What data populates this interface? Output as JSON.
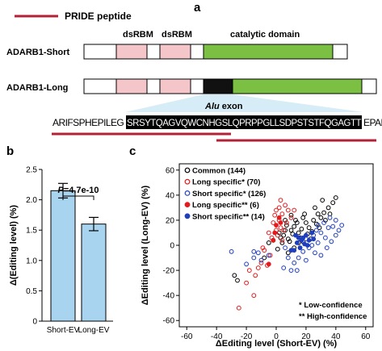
{
  "panel_a": {
    "label": "a",
    "legend_label": "PRIDE peptide",
    "colors": {
      "peptide": "#b22234",
      "dsrbm": "#f5c6c9",
      "catalytic": "#7bc043",
      "alu": "#111111",
      "exon_shade": "#d6ecf7"
    },
    "domain_labels": {
      "dsrbm1": "dsRBM",
      "dsrbm2": "dsRBM",
      "catalytic": "catalytic domain"
    },
    "isoforms": {
      "short": "ADARB1-Short",
      "long": "ADARB1-Long"
    },
    "alu_label": "Alu",
    "exon_label": " exon",
    "sequence": {
      "left": "ARIFSPHEPILEG",
      "exon": "SRSYTQAGVQWCNHGSLQPRPPGLLSDPSTSTFQGAGTT",
      "right": "EPADRHP"
    }
  },
  "panel_b": {
    "label": "b",
    "chart_data": {
      "type": "bar",
      "categories": [
        "Short-EV",
        "Long-EV"
      ],
      "values": [
        2.15,
        1.6
      ],
      "errors": [
        0.12,
        0.11
      ],
      "ylabel": "Δ(Editing level) (%)",
      "ylim": [
        0,
        2.5
      ],
      "yticks": [
        "0",
        "0.5",
        "1.0",
        "1.5",
        "2.0",
        "2.5"
      ],
      "annotation_p": "P",
      "annotation_value": "=4.7e-10",
      "bar_color": "#a9d4f0"
    }
  },
  "panel_c": {
    "label": "c",
    "chart_data": {
      "type": "scatter",
      "xlabel": "ΔEditing level (Short-EV) (%)",
      "ylabel": "ΔEditing level (Long-EV) (%)",
      "xlim": [
        -65,
        65
      ],
      "ylim": [
        -65,
        65
      ],
      "xticks": [
        "-60",
        "-40",
        "-20",
        "0",
        "20",
        "40",
        "60"
      ],
      "yticks": [
        "-60",
        "-40",
        "-20",
        "0",
        "20",
        "40",
        "60"
      ],
      "series": [
        {
          "name": "Common (144)",
          "color": "#000000",
          "filled": false,
          "points": [
            [
              5,
              8
            ],
            [
              10,
              12
            ],
            [
              15,
              10
            ],
            [
              8,
              5
            ],
            [
              12,
              15
            ],
            [
              20,
              18
            ],
            [
              18,
              22
            ],
            [
              25,
              20
            ],
            [
              22,
              14
            ],
            [
              14,
              18
            ],
            [
              6,
              12
            ],
            [
              9,
              3
            ],
            [
              16,
              6
            ],
            [
              28,
              25
            ],
            [
              30,
              22
            ],
            [
              35,
              30
            ],
            [
              40,
              38
            ],
            [
              38,
              34
            ],
            [
              32,
              26
            ],
            [
              26,
              30
            ],
            [
              11,
              9
            ],
            [
              13,
              20
            ],
            [
              17,
              13
            ],
            [
              21,
              9
            ],
            [
              4,
              2
            ],
            [
              7,
              16
            ],
            [
              19,
              25
            ],
            [
              24,
              11
            ],
            [
              27,
              17
            ],
            [
              3,
              6
            ],
            [
              -2,
              4
            ],
            [
              -5,
              2
            ],
            [
              1,
              -3
            ],
            [
              2,
              10
            ],
            [
              15,
              2
            ],
            [
              23,
              5
            ],
            [
              29,
              14
            ],
            [
              33,
              20
            ],
            [
              12,
              -2
            ],
            [
              8,
              -6
            ],
            [
              -8,
              -10
            ],
            [
              -28,
              -24
            ],
            [
              -26,
              -28
            ],
            [
              6,
              20
            ],
            [
              18,
              3
            ],
            [
              10,
              24
            ],
            [
              36,
              25
            ],
            [
              31,
              36
            ]
          ]
        },
        {
          "name": "Long specific* (70)",
          "color": "#e41a1c",
          "filled": false,
          "points": [
            [
              2,
              20
            ],
            [
              0,
              28
            ],
            [
              4,
              25
            ],
            [
              6,
              32
            ],
            [
              3,
              14
            ],
            [
              -2,
              18
            ],
            [
              1,
              8
            ],
            [
              -5,
              10
            ],
            [
              -8,
              -4
            ],
            [
              -10,
              -14
            ],
            [
              -12,
              -18
            ],
            [
              -20,
              -30
            ],
            [
              -25,
              -50
            ],
            [
              -15,
              -40
            ],
            [
              -6,
              -16
            ],
            [
              -3,
              6
            ],
            [
              5,
              12
            ],
            [
              8,
              28
            ],
            [
              10,
              22
            ],
            [
              2,
              30
            ],
            [
              -1,
              24
            ],
            [
              7,
              18
            ],
            [
              4,
              4
            ],
            [
              -14,
              -24
            ],
            [
              -9,
              -2
            ],
            [
              12,
              28
            ],
            [
              3,
              36
            ],
            [
              0,
              12
            ],
            [
              -4,
              -8
            ],
            [
              -18,
              -20
            ]
          ]
        },
        {
          "name": "Short specific* (126)",
          "color": "#1f3fbf",
          "filled": false,
          "points": [
            [
              20,
              5
            ],
            [
              25,
              8
            ],
            [
              28,
              2
            ],
            [
              30,
              10
            ],
            [
              35,
              14
            ],
            [
              33,
              6
            ],
            [
              22,
              -2
            ],
            [
              18,
              -5
            ],
            [
              15,
              -10
            ],
            [
              12,
              -14
            ],
            [
              10,
              -20
            ],
            [
              5,
              -18
            ],
            [
              38,
              15
            ],
            [
              40,
              20
            ],
            [
              42,
              12
            ],
            [
              26,
              -6
            ],
            [
              24,
              0
            ],
            [
              30,
              -8
            ],
            [
              16,
              -2
            ],
            [
              8,
              -10
            ],
            [
              -5,
              -8
            ],
            [
              -10,
              -12
            ],
            [
              -15,
              -10
            ],
            [
              -20,
              -15
            ],
            [
              -30,
              -5
            ],
            [
              -15,
              -5
            ],
            [
              36,
              22
            ],
            [
              44,
              16
            ],
            [
              32,
              18
            ],
            [
              27,
              12
            ],
            [
              34,
              -2
            ],
            [
              20,
              -12
            ],
            [
              14,
              -20
            ],
            [
              6,
              -2
            ],
            [
              -12,
              -6
            ],
            [
              28,
              16
            ],
            [
              40,
              8
            ],
            [
              37,
              3
            ]
          ]
        },
        {
          "name": "Long specific** (6)",
          "color": "#e41a1c",
          "filled": true,
          "points": [
            [
              0,
              16
            ],
            [
              -1,
              10
            ],
            [
              2,
              22
            ],
            [
              -5,
              -15
            ],
            [
              -2,
              4
            ],
            [
              3,
              18
            ]
          ]
        },
        {
          "name": "Short specific** (14)",
          "color": "#1f3fbf",
          "filled": true,
          "points": [
            [
              14,
              2
            ],
            [
              18,
              6
            ],
            [
              22,
              4
            ],
            [
              16,
              -2
            ],
            [
              20,
              8
            ],
            [
              25,
              5
            ],
            [
              12,
              -4
            ],
            [
              10,
              -4
            ],
            [
              24,
              10
            ],
            [
              19,
              1
            ],
            [
              15,
              6
            ],
            [
              21,
              0
            ],
            [
              17,
              4
            ],
            [
              13,
              8
            ]
          ]
        }
      ]
    },
    "notes": [
      "* Low-confidence",
      "** High-confidence"
    ]
  }
}
